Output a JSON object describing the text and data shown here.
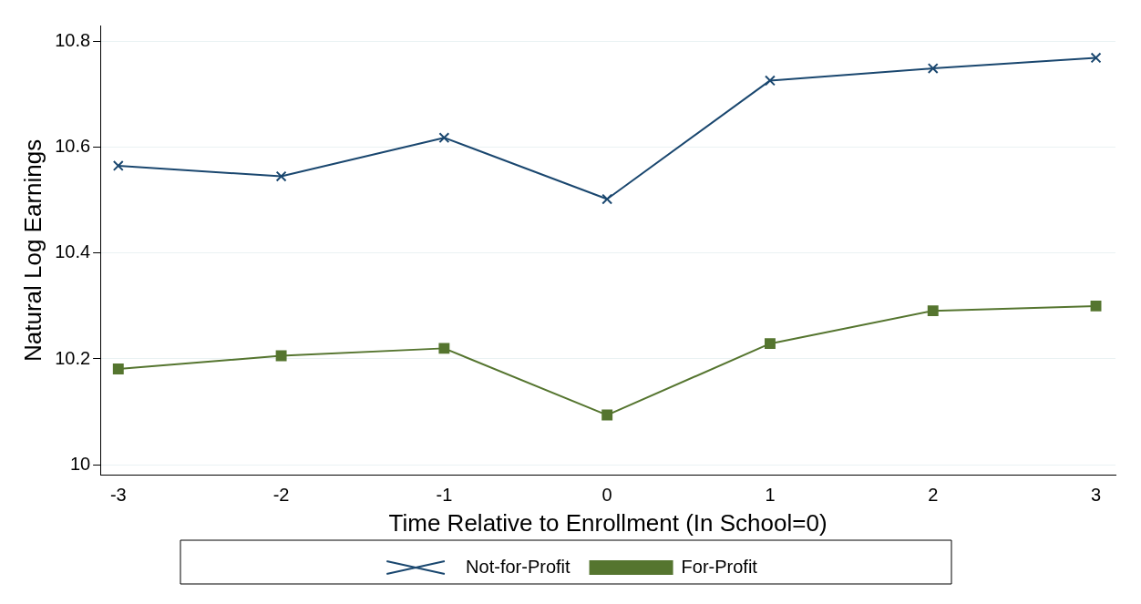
{
  "chart_data": {
    "type": "line",
    "xlabel": "Time Relative to Enrollment (In School=0)",
    "ylabel": "Natural Log Earnings",
    "x": [
      -3,
      -2,
      -1,
      0,
      1,
      2,
      3
    ],
    "series": [
      {
        "name": "Not-for-Profit",
        "color": "#1a476f",
        "marker": "cross",
        "values": [
          10.565,
          10.545,
          10.618,
          10.502,
          10.726,
          10.749,
          10.769
        ]
      },
      {
        "name": "For-Profit",
        "color": "#55752f",
        "marker": "square",
        "values": [
          10.181,
          10.206,
          10.22,
          10.094,
          10.229,
          10.291,
          10.3
        ]
      }
    ],
    "xlim": [
      -3.11,
      3.12
    ],
    "xticks": [
      -3,
      -2,
      -1,
      0,
      1,
      2,
      3
    ],
    "ylim": [
      9.98,
      10.83
    ],
    "yticks": [
      {
        "value": 10,
        "label": "10"
      },
      10.2,
      10.4,
      10.6,
      10.8
    ],
    "grid": "y",
    "legend": "bottom"
  }
}
